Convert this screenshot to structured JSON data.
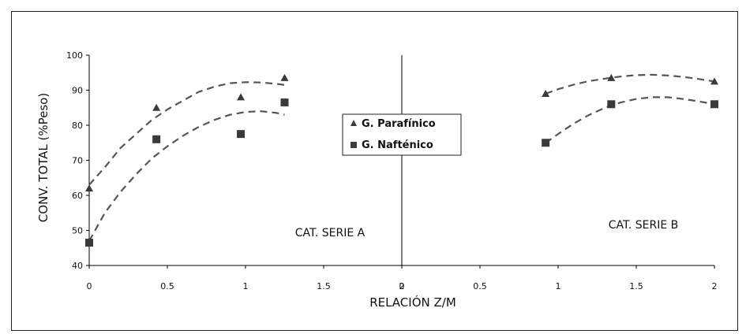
{
  "chart_data": {
    "type": "scatter",
    "ylabel": "CONV. TOTAL (%Peso)",
    "xlabel": "RELACIÓN Z/M",
    "ylim": [
      40,
      100
    ],
    "yticks": [
      "40",
      "50",
      "60",
      "70",
      "80",
      "90",
      "100"
    ],
    "legend_position": "center",
    "colors": {
      "marker": "#3a3a3a",
      "trend": "#555555",
      "axis": "#000000"
    },
    "panels": [
      {
        "annotation": "CAT. SERIE A",
        "xlim": [
          0,
          2
        ],
        "xticks": [
          "0",
          "0.5",
          "1",
          "1.5",
          "2"
        ],
        "series": [
          {
            "name": "G. Parafínico",
            "marker": "triangle",
            "x": [
              0,
              0.43,
              0.97,
              1.25
            ],
            "y": [
              62,
              85,
              88,
              93.5
            ],
            "trend_x": [
              0,
              0.1,
              0.2,
              0.3,
              0.4,
              0.5,
              0.6,
              0.7,
              0.8,
              0.9,
              1.0,
              1.1,
              1.2,
              1.25
            ],
            "trend_y": [
              63,
              68,
              73.5,
              77.5,
              81.5,
              84.5,
              87,
              89.5,
              91,
              92,
              92.3,
              92.2,
              91.8,
              91.5
            ]
          },
          {
            "name": "G. Nafténico",
            "marker": "square",
            "x": [
              0,
              0.43,
              0.97,
              1.25
            ],
            "y": [
              46.5,
              76,
              77.5,
              86.5
            ],
            "trend_x": [
              0,
              0.1,
              0.2,
              0.3,
              0.4,
              0.5,
              0.6,
              0.7,
              0.8,
              0.9,
              1.0,
              1.1,
              1.2,
              1.25
            ],
            "trend_y": [
              47,
              55,
              61,
              66,
              70.5,
              74,
              77,
              79.5,
              81.5,
              83,
              83.8,
              84,
              83.5,
              83
            ]
          }
        ]
      },
      {
        "annotation": "CAT. SERIE B",
        "xlim": [
          0,
          2
        ],
        "xticks": [
          "0",
          "0.5",
          "1",
          "1.5",
          "2"
        ],
        "series": [
          {
            "name": "G. Parafínico",
            "marker": "triangle",
            "x": [
              0.92,
              1.34,
              2.0
            ],
            "y": [
              89,
              93.5,
              92.5
            ],
            "trend_x": [
              0.92,
              1.0,
              1.1,
              1.2,
              1.3,
              1.4,
              1.5,
              1.6,
              1.7,
              1.8,
              1.9,
              2.0
            ],
            "trend_y": [
              89,
              90.3,
              91.6,
              92.6,
              93.3,
              93.9,
              94.3,
              94.4,
              94.2,
              93.8,
              93.2,
              92.5
            ]
          },
          {
            "name": "G. Nafténico",
            "marker": "square",
            "x": [
              0.92,
              1.34,
              2.0
            ],
            "y": [
              75,
              86,
              86
            ],
            "trend_x": [
              0.92,
              1.0,
              1.1,
              1.2,
              1.3,
              1.4,
              1.5,
              1.6,
              1.7,
              1.8,
              1.9,
              2.0
            ],
            "trend_y": [
              75,
              77.5,
              80.5,
              83,
              85,
              86.5,
              87.5,
              88,
              88,
              87.5,
              86.8,
              86
            ]
          }
        ]
      }
    ],
    "legend": [
      {
        "label": "G. Parafínico",
        "marker": "triangle"
      },
      {
        "label": "G. Nafténico",
        "marker": "square"
      }
    ]
  }
}
